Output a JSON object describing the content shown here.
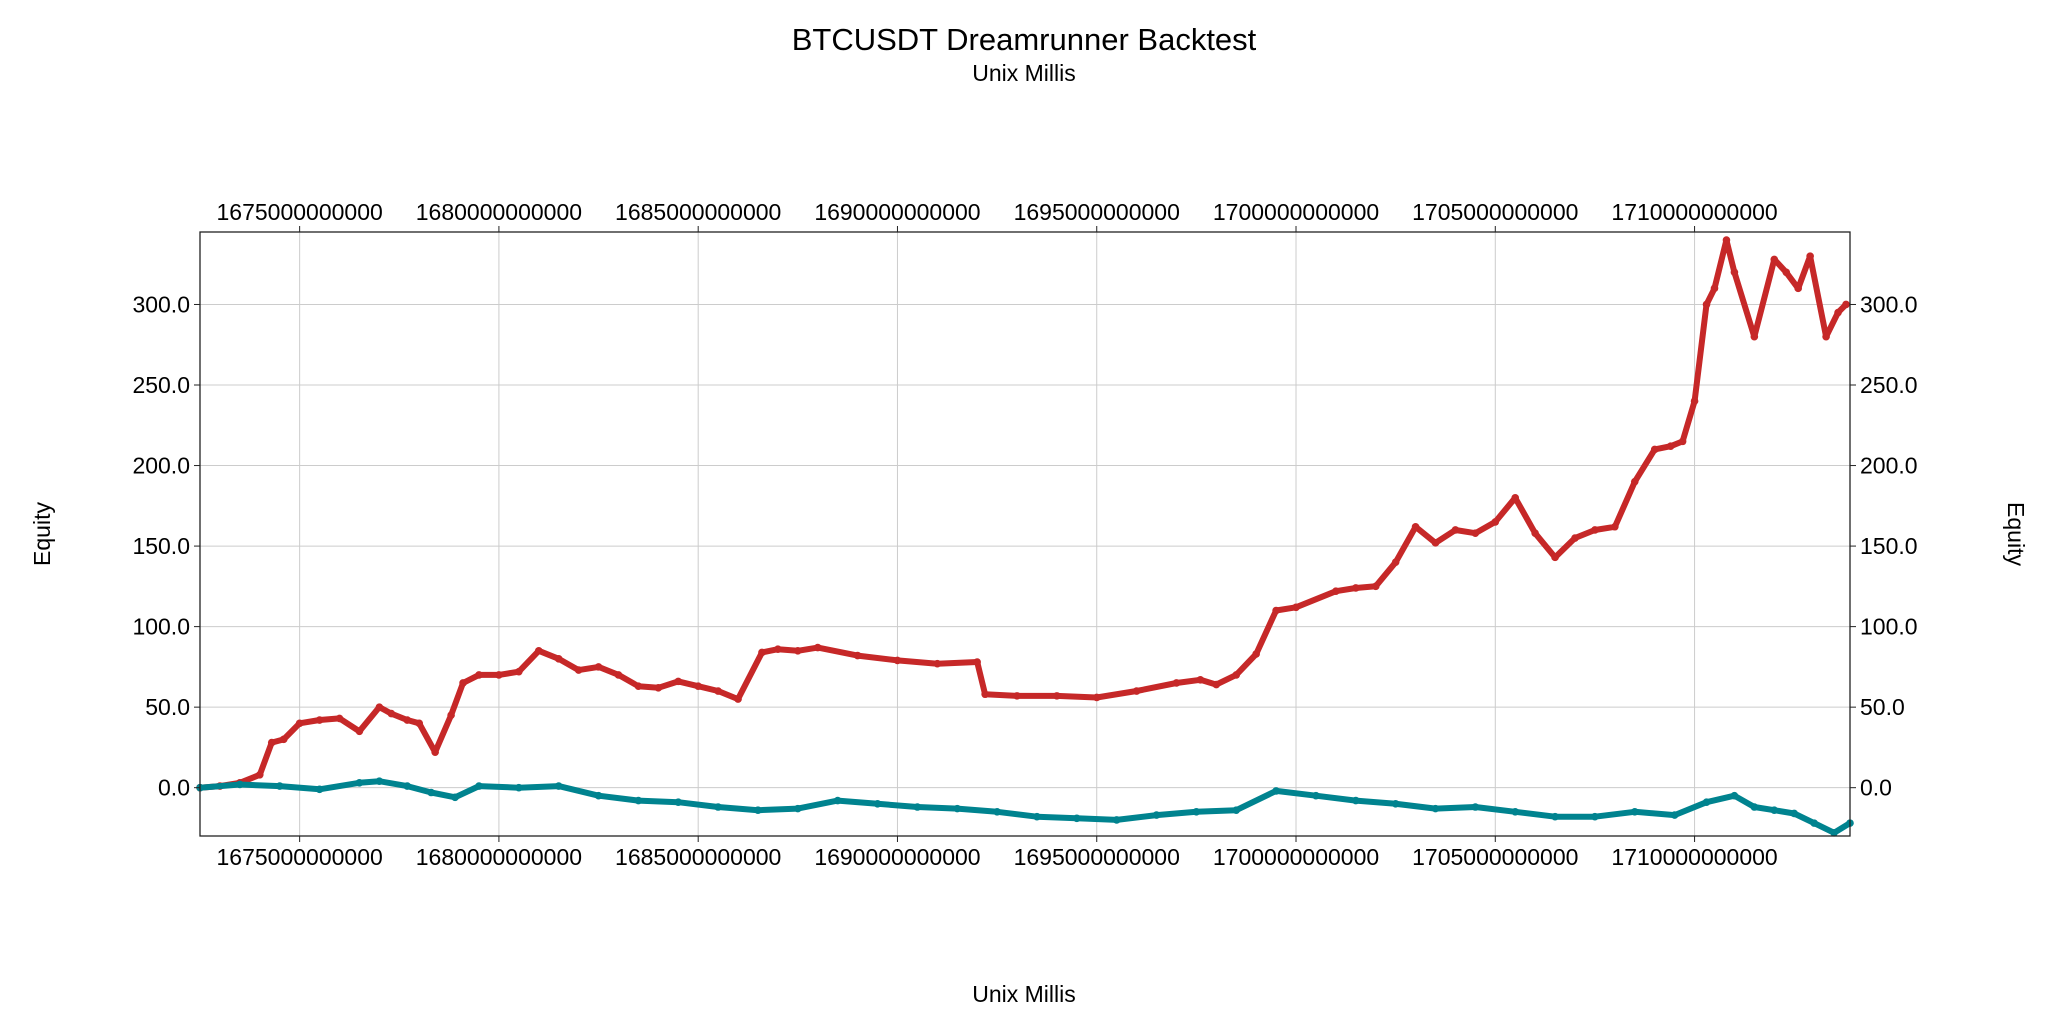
{
  "chart_data": {
    "type": "scatter",
    "title": "BTCUSDT Dreamrunner Backtest",
    "subtitle": "Unix Millis",
    "xlabel": "Unix Millis",
    "ylabel_left": "Equity",
    "ylabel_right": "Equity",
    "xlim": [
      1672500000000,
      1713900000000
    ],
    "ylim": [
      -30,
      345
    ],
    "grid": true,
    "x_ticks": [
      1675000000000,
      1680000000000,
      1685000000000,
      1690000000000,
      1695000000000,
      1700000000000,
      1705000000000,
      1710000000000
    ],
    "x_tick_labels": [
      "1675000000000",
      "1680000000000",
      "1685000000000",
      "1690000000000",
      "1695000000000",
      "1700000000000",
      "1705000000000",
      "1710000000000"
    ],
    "y_ticks": [
      0,
      50,
      100,
      150,
      200,
      250,
      300
    ],
    "y_tick_labels": [
      "0.0",
      "50.0",
      "100.0",
      "150.0",
      "200.0",
      "250.0",
      "300.0"
    ],
    "series": [
      {
        "color": "#c62828",
        "x": [
          1672500000000,
          1673000000000,
          1673500000000,
          1674000000000,
          1674300000000,
          1674600000000,
          1675000000000,
          1675500000000,
          1676000000000,
          1676500000000,
          1677000000000,
          1677300000000,
          1677700000000,
          1678000000000,
          1678400000000,
          1678800000000,
          1679100000000,
          1679500000000,
          1680000000000,
          1680500000000,
          1681000000000,
          1681500000000,
          1682000000000,
          1682500000000,
          1683000000000,
          1683500000000,
          1684000000000,
          1684500000000,
          1685000000000,
          1685500000000,
          1686000000000,
          1686600000000,
          1687000000000,
          1687500000000,
          1688000000000,
          1689000000000,
          1690000000000,
          1691000000000,
          1692000000000,
          1692200000000,
          1693000000000,
          1694000000000,
          1695000000000,
          1696000000000,
          1697000000000,
          1697600000000,
          1698000000000,
          1698500000000,
          1699000000000,
          1699500000000,
          1700000000000,
          1701000000000,
          1701500000000,
          1702000000000,
          1702500000000,
          1703000000000,
          1703500000000,
          1704000000000,
          1704500000000,
          1705000000000,
          1705500000000,
          1706000000000,
          1706500000000,
          1707000000000,
          1707500000000,
          1708000000000,
          1708500000000,
          1709000000000,
          1709400000000,
          1709700000000,
          1710000000000,
          1710300000000,
          1710500000000,
          1710800000000,
          1711000000000,
          1711500000000,
          1712000000000,
          1712300000000,
          1712600000000,
          1712900000000,
          1713300000000,
          1713600000000,
          1713800000000
        ],
        "y": [
          0,
          1,
          3,
          8,
          28,
          30,
          40,
          42,
          43,
          35,
          50,
          46,
          42,
          40,
          22,
          45,
          65,
          70,
          70,
          72,
          85,
          80,
          73,
          75,
          70,
          63,
          62,
          66,
          63,
          60,
          55,
          84,
          86,
          85,
          87,
          82,
          79,
          77,
          78,
          58,
          57,
          57,
          56,
          60,
          65,
          67,
          64,
          70,
          83,
          110,
          112,
          122,
          124,
          125,
          140,
          162,
          152,
          160,
          158,
          165,
          180,
          158,
          143,
          155,
          160,
          162,
          190,
          210,
          212,
          215,
          240,
          300,
          310,
          340,
          320,
          280,
          328,
          320,
          310,
          330,
          280,
          295,
          300
        ]
      },
      {
        "color": "#00838f",
        "x": [
          1672500000000,
          1673500000000,
          1674500000000,
          1675500000000,
          1676500000000,
          1677000000000,
          1677700000000,
          1678300000000,
          1678900000000,
          1679500000000,
          1680500000000,
          1681500000000,
          1682500000000,
          1683500000000,
          1684500000000,
          1685500000000,
          1686500000000,
          1687500000000,
          1688500000000,
          1689500000000,
          1690500000000,
          1691500000000,
          1692500000000,
          1693500000000,
          1694500000000,
          1695500000000,
          1696500000000,
          1697500000000,
          1698500000000,
          1699500000000,
          1700500000000,
          1701500000000,
          1702500000000,
          1703500000000,
          1704500000000,
          1705500000000,
          1706500000000,
          1707500000000,
          1708500000000,
          1709500000000,
          1710300000000,
          1711000000000,
          1711500000000,
          1712000000000,
          1712500000000,
          1713000000000,
          1713500000000,
          1713900000000
        ],
        "y": [
          0,
          2,
          1,
          -1,
          3,
          4,
          1,
          -3,
          -6,
          1,
          0,
          1,
          -5,
          -8,
          -9,
          -12,
          -14,
          -13,
          -8,
          -10,
          -12,
          -13,
          -15,
          -18,
          -19,
          -20,
          -17,
          -15,
          -14,
          -2,
          -5,
          -8,
          -10,
          -13,
          -12,
          -15,
          -18,
          -18,
          -15,
          -17,
          -9,
          -5,
          -12,
          -14,
          -16,
          -22,
          -28,
          -22
        ]
      }
    ]
  }
}
